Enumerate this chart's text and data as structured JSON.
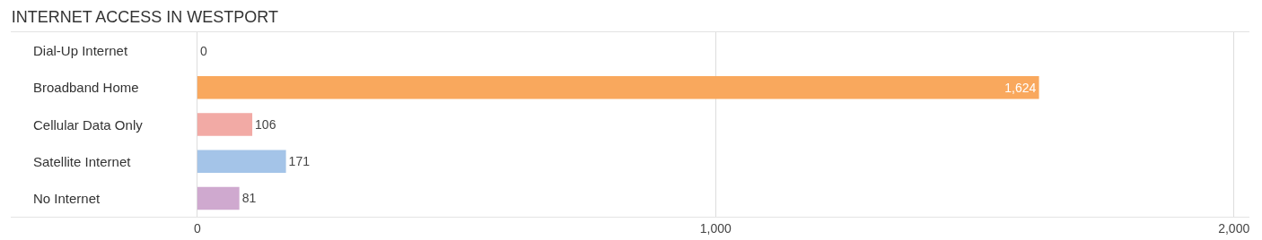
{
  "chart_data": {
    "type": "bar",
    "orientation": "horizontal",
    "title": "INTERNET ACCESS IN WESTPORT",
    "categories": [
      "Dial-Up Internet",
      "Broadband Home",
      "Cellular Data Only",
      "Satellite Internet",
      "No Internet"
    ],
    "values": [
      0,
      1624,
      106,
      171,
      81
    ],
    "colors": [
      "#f7a8c4",
      "#f9a85d",
      "#f2aaa5",
      "#a4c4e8",
      "#cfa9cf"
    ],
    "xlim": [
      -360,
      2030
    ],
    "xticks": [
      0,
      {
        "value": 1000,
        "label": "1,000"
      },
      {
        "value": 2000,
        "label": "2,000"
      }
    ],
    "value_labels": [
      "0",
      "1,624",
      "106",
      "171",
      "81"
    ],
    "grid": "x",
    "legend": false
  }
}
